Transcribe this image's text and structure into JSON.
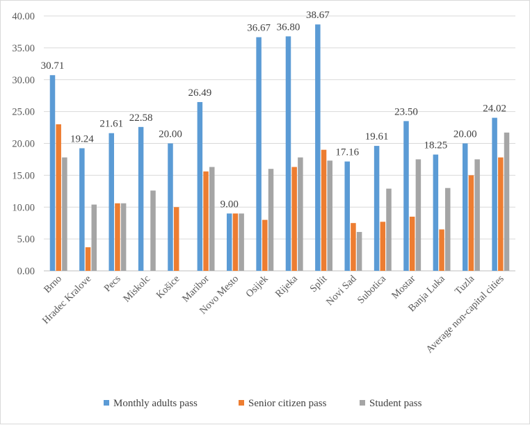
{
  "chart_data": {
    "type": "bar",
    "title": "",
    "xlabel": "",
    "ylabel": "",
    "ylim": [
      0,
      40
    ],
    "yticks": [
      "0.00",
      "5.00",
      "10.00",
      "15.00",
      "20.00",
      "25.00",
      "30.00",
      "35.00",
      "40.00"
    ],
    "grid": true,
    "legend_position": "bottom",
    "categories": [
      "Brno",
      "Hradec Kralove",
      "Pecs",
      "Miskolc",
      "Košice",
      "Maribor",
      "Novo Mesto",
      "Osijek",
      "Rijeka",
      "Split",
      "Novi Sad",
      "Subotica",
      "Mostar",
      "Banja Luka",
      "Tuzla",
      "Average non-capital cities"
    ],
    "series": [
      {
        "name": "Monthly adults pass",
        "color": "#5b9bd5",
        "values": [
          30.71,
          19.24,
          21.61,
          22.58,
          20.0,
          26.49,
          9.0,
          36.67,
          36.8,
          38.67,
          17.16,
          19.61,
          23.5,
          18.25,
          20.0,
          24.02
        ],
        "labels": [
          "30.71",
          "19.24",
          "21.61",
          "22.58",
          "20.00",
          "26.49",
          "9.00",
          "36.67",
          "36.80",
          "38.67",
          "17.16",
          "19.61",
          "23.50",
          "18.25",
          "20.00",
          "24.02"
        ]
      },
      {
        "name": "Senior citizen pass",
        "color": "#ed7d31",
        "values": [
          23.0,
          3.7,
          10.6,
          null,
          10.0,
          15.6,
          9.0,
          8.0,
          16.3,
          19.0,
          7.5,
          7.7,
          8.5,
          6.5,
          15.0,
          17.8
        ]
      },
      {
        "name": "Student pass",
        "color": "#a5a5a5",
        "values": [
          17.8,
          10.4,
          10.6,
          12.6,
          null,
          16.3,
          9.0,
          16.0,
          17.8,
          17.3,
          6.1,
          12.9,
          17.5,
          13.0,
          17.5,
          21.7
        ]
      }
    ]
  }
}
